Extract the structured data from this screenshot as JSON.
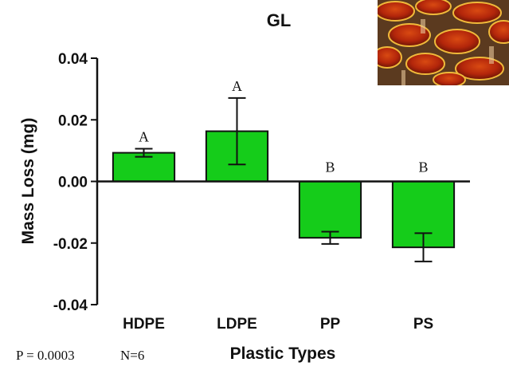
{
  "chart_data": {
    "type": "bar",
    "title": "GL",
    "xlabel": "Plastic Types",
    "ylabel": "Mass Loss (mg)",
    "categories": [
      "HDPE",
      "LDPE",
      "PP",
      "PS"
    ],
    "values": [
      0.0093,
      0.0163,
      -0.0183,
      -0.0214
    ],
    "error": [
      0.0013,
      0.0108,
      0.002,
      0.0046
    ],
    "group_letters": [
      "A",
      "A",
      "B",
      "B"
    ],
    "ylim": [
      -0.04,
      0.04
    ],
    "yticks": [
      -0.04,
      -0.02,
      0.0,
      0.02,
      0.04
    ],
    "ytick_labels": [
      "-0.04",
      "-0.02",
      "0.00",
      "0.02",
      "0.04"
    ],
    "grid": false,
    "bar_color": "#15cc1a",
    "bar_edge_color": "#111111"
  },
  "footnotes": {
    "p_value": "P = 0.0003",
    "n": "N=6"
  },
  "image": {
    "icon": "reishi-mushroom-photo"
  }
}
